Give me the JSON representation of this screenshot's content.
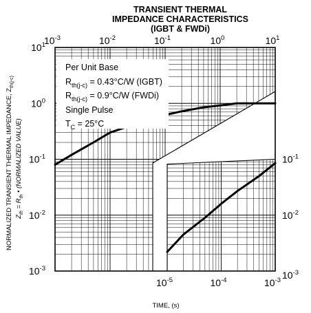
{
  "chart_data": {
    "type": "line",
    "title_lines": [
      "TRANSIENT THERMAL",
      "IMPEDANCE CHARACTERISTICS",
      "(IGBT & FWDi)"
    ],
    "xlabel": "TIME, (s)",
    "ylabel": {
      "line1_main": "NORMALIZED TRANSIENT THERMAL IMPEDANCE, Z",
      "line1_sub": "th(j-c)",
      "line2_a": "Z",
      "line2_a_sub": "th",
      "line2_b": " = R",
      "line2_b_sub": "th",
      "line2_c": " • (NORMALIZED VALUE)"
    },
    "top_axis": {
      "scale": "log",
      "range": [
        0.001,
        10
      ],
      "ticks": [
        {
          "base": "10",
          "exp": "-3"
        },
        {
          "base": "10",
          "exp": "-2"
        },
        {
          "base": "10",
          "exp": "-1"
        },
        {
          "base": "10",
          "exp": "0"
        },
        {
          "base": "10",
          "exp": "1"
        }
      ]
    },
    "bottom_axis": {
      "scale": "log",
      "range": [
        1e-05,
        0.001
      ],
      "ticks": [
        {
          "base": "10",
          "exp": "-5"
        },
        {
          "base": "10",
          "exp": "-4"
        },
        {
          "base": "10",
          "exp": "-3"
        }
      ]
    },
    "left_axis": {
      "scale": "log",
      "range": [
        0.001,
        10
      ],
      "ticks": [
        {
          "base": "10",
          "exp": "1"
        },
        {
          "base": "10",
          "exp": "0"
        },
        {
          "base": "10",
          "exp": "-1"
        },
        {
          "base": "10",
          "exp": "-2"
        },
        {
          "base": "10",
          "exp": "-3"
        }
      ]
    },
    "right_axis": {
      "scale": "log",
      "range": [
        0.001,
        0.1
      ],
      "ticks": [
        {
          "base": "10",
          "exp": "-1"
        },
        {
          "base": "10",
          "exp": "-2"
        },
        {
          "base": "10",
          "exp": "-3"
        }
      ]
    },
    "annotations": [
      {
        "text": "Per Unit Base"
      },
      {
        "text": "R",
        "sub": "th(j-c)",
        "rest": " = 0.43°C/W (IGBT)"
      },
      {
        "text": "R",
        "sub": "th(j-c)",
        "rest": " = 0.9°C/W   (FWDi)"
      },
      {
        "text": "Single Pulse"
      },
      {
        "text": "T",
        "sub": "C",
        "rest": " = 25°C"
      }
    ],
    "grid": true,
    "series": [
      {
        "axes": "top-left",
        "x": [
          0.001,
          0.002,
          0.005,
          0.01,
          0.02,
          0.05,
          0.1,
          0.2,
          0.5,
          1,
          2,
          5,
          10
        ],
        "y": [
          0.08,
          0.12,
          0.2,
          0.3,
          0.38,
          0.5,
          0.62,
          0.72,
          0.85,
          0.92,
          1.0,
          1.0,
          1.0
        ]
      },
      {
        "axes": "bottom-right",
        "x": [
          1e-05,
          2e-05,
          5e-05,
          0.0001,
          0.0002,
          0.0005,
          0.001
        ],
        "y": [
          0.0022,
          0.0045,
          0.009,
          0.016,
          0.027,
          0.05,
          0.085
        ]
      }
    ]
  }
}
